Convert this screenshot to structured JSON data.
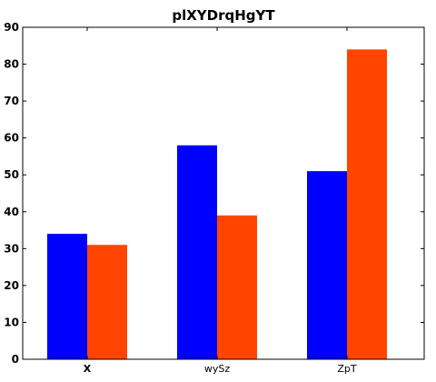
{
  "chart_data": {
    "type": "bar",
    "title": "plXYDrqHgYT",
    "xlabel": "",
    "ylabel": "",
    "categories": [
      "X",
      "wySz",
      "ZpT"
    ],
    "series": [
      {
        "values": [
          34,
          58,
          51
        ],
        "color": "#0000ff"
      },
      {
        "values": [
          31,
          39,
          84
        ],
        "color": "#ff4500"
      }
    ],
    "ylim": [
      0,
      90
    ],
    "yticks": [
      0,
      10,
      20,
      30,
      40,
      50,
      60,
      70,
      80,
      90
    ],
    "grid": false,
    "legend": "none"
  }
}
